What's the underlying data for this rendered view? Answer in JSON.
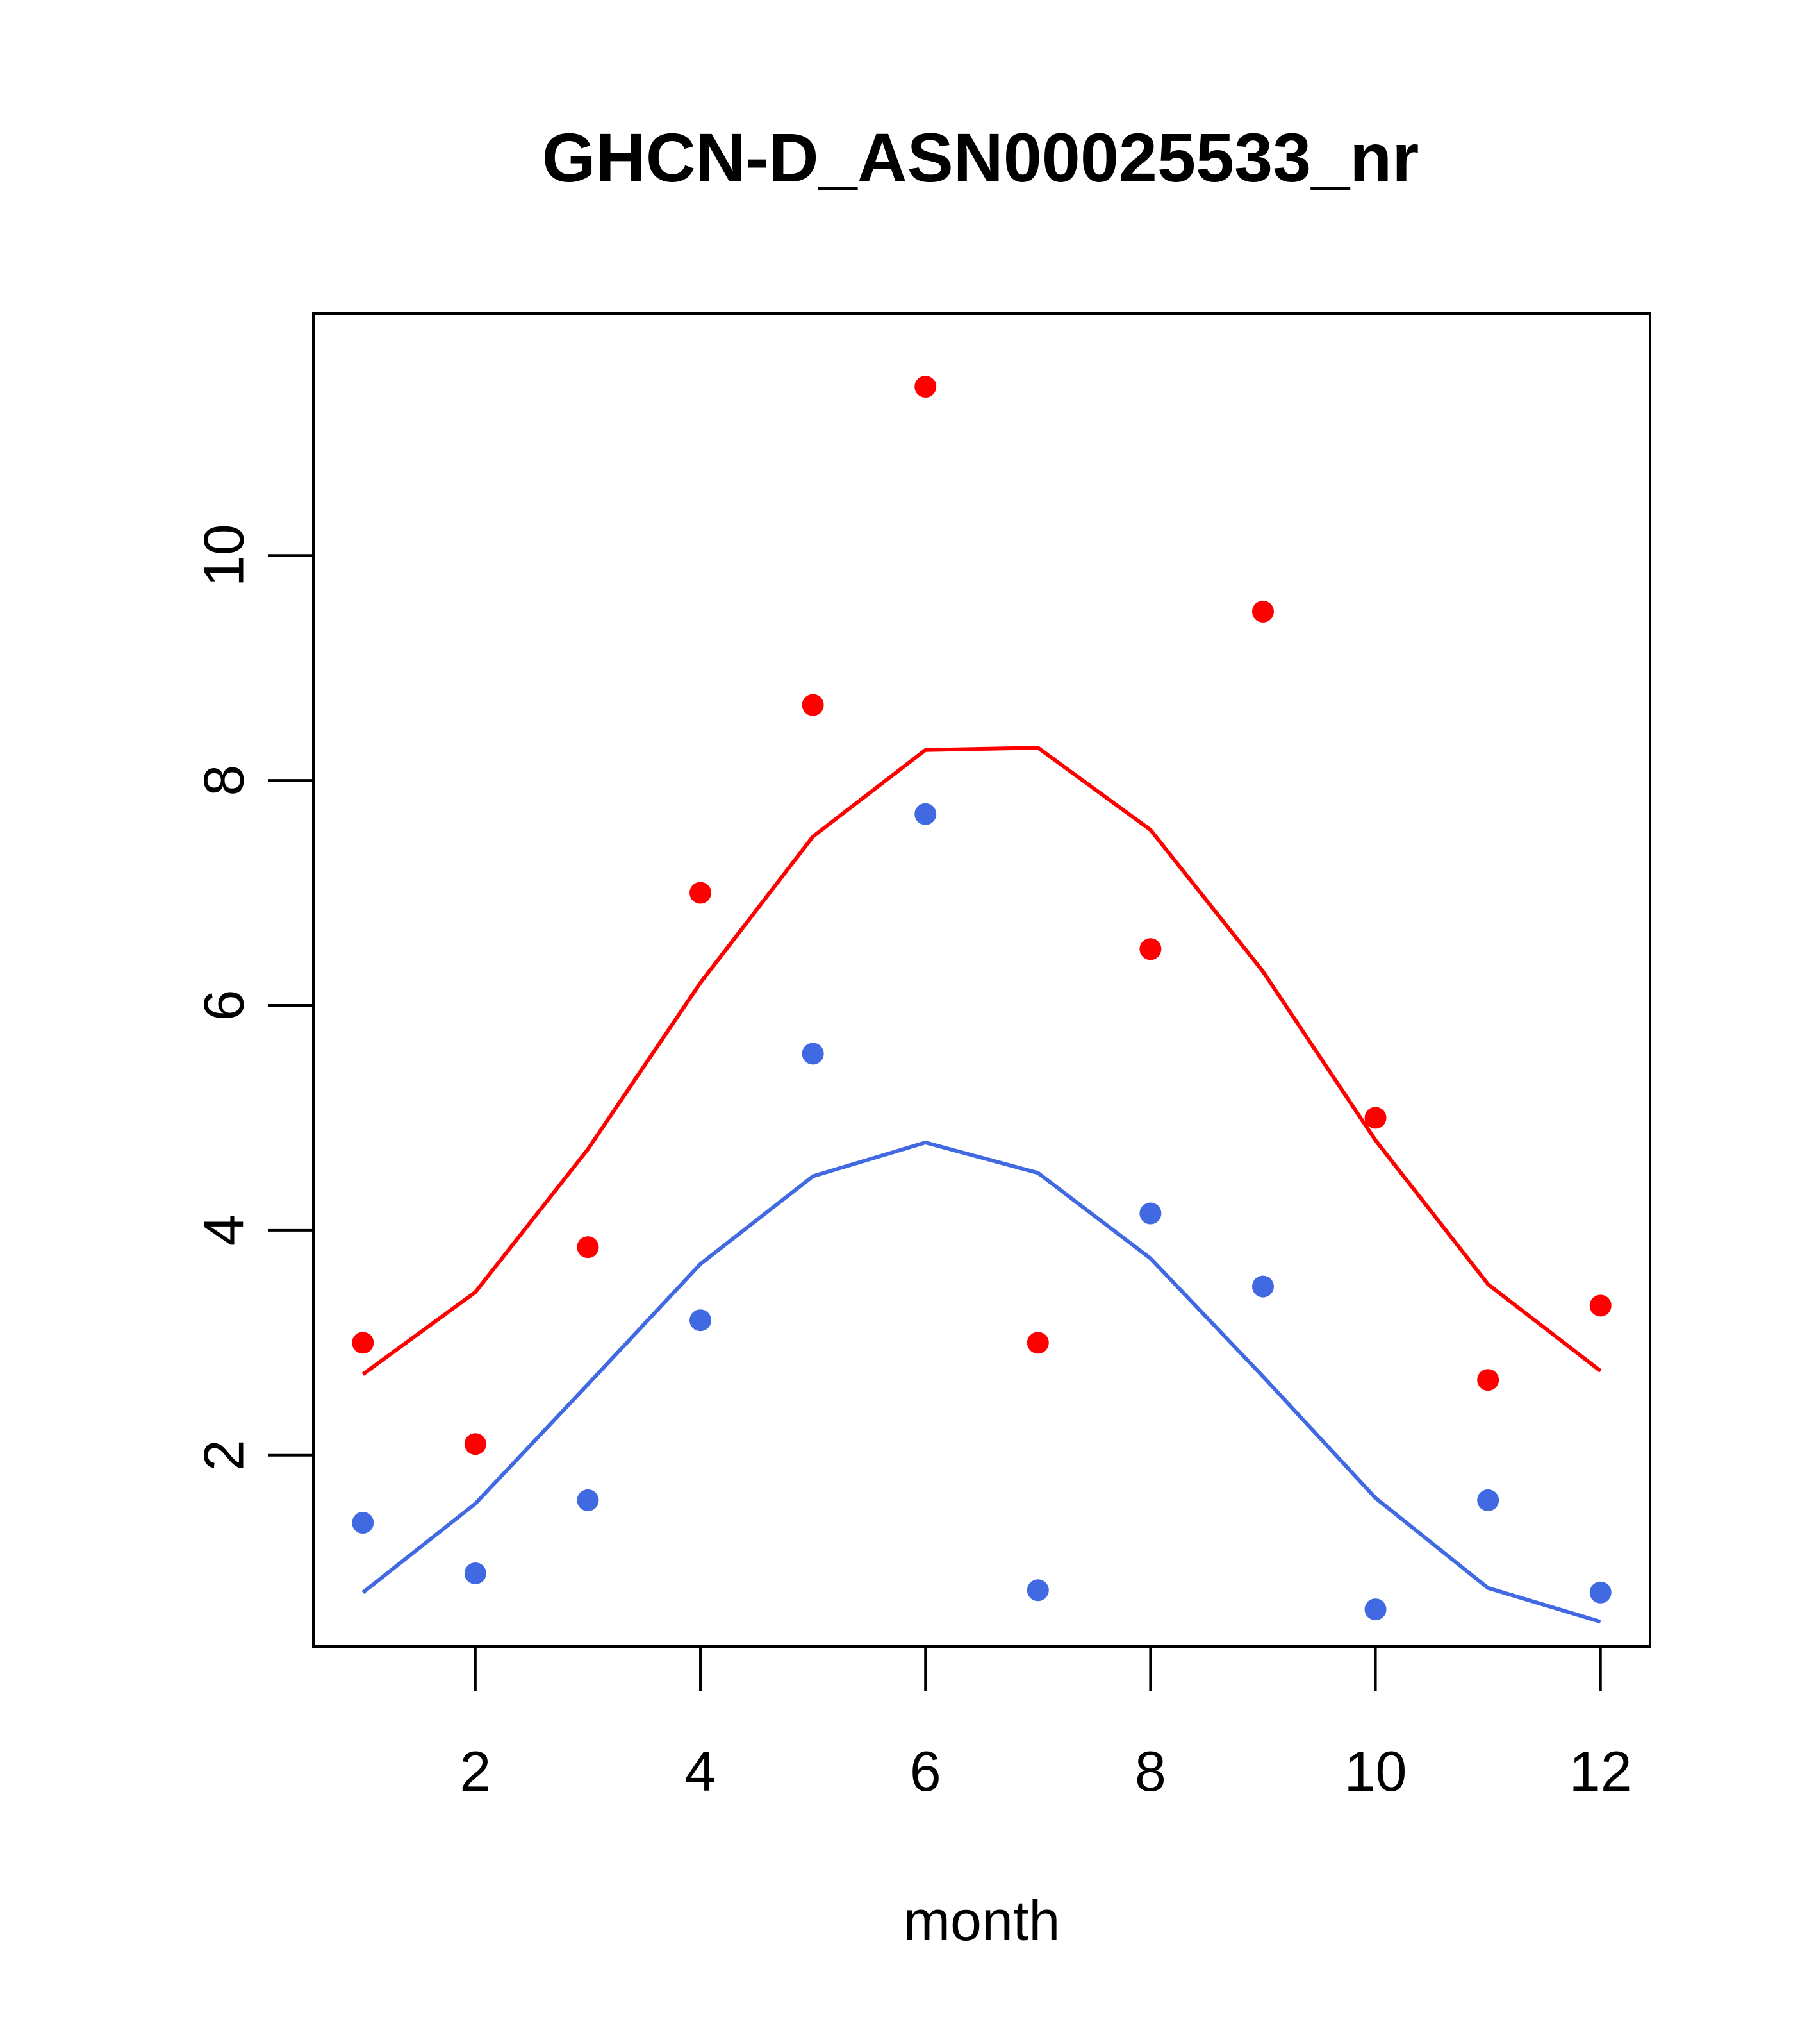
{
  "chart_data": {
    "type": "line",
    "title": "GHCN-D_ASN00025533_nr",
    "xlabel": "month",
    "ylabel": "",
    "xlim": [
      0.56,
      12.44
    ],
    "ylim": [
      0.3,
      12.15
    ],
    "x_ticks": [
      2,
      4,
      6,
      8,
      10,
      12
    ],
    "y_ticks": [
      2,
      4,
      6,
      8,
      10
    ],
    "grid": false,
    "colors": {
      "red": "#ff0000",
      "blue": "#4169e1"
    },
    "series": [
      {
        "color": "red",
        "mode": "points",
        "x": [
          1,
          2,
          3,
          4,
          5,
          6,
          7,
          8,
          9,
          10,
          11,
          12
        ],
        "y": [
          3.0,
          2.1,
          3.85,
          7.0,
          8.67,
          11.5,
          3.0,
          6.5,
          9.5,
          5.0,
          2.67,
          3.33
        ]
      },
      {
        "color": "red",
        "mode": "line",
        "x": [
          1,
          2,
          3,
          4,
          5,
          6,
          7,
          8,
          9,
          10,
          11,
          12
        ],
        "y": [
          2.72,
          3.45,
          4.72,
          6.2,
          7.5,
          8.27,
          8.29,
          7.56,
          6.3,
          4.8,
          3.52,
          2.75
        ]
      },
      {
        "color": "blue",
        "mode": "points",
        "x": [
          1,
          2,
          3,
          4,
          5,
          6,
          7,
          8,
          9,
          10,
          11,
          12
        ],
        "y": [
          1.4,
          0.95,
          1.6,
          3.2,
          5.57,
          7.7,
          0.8,
          4.15,
          3.5,
          0.63,
          1.6,
          0.78
        ]
      },
      {
        "color": "blue",
        "mode": "line",
        "x": [
          1,
          2,
          3,
          4,
          5,
          6,
          7,
          8,
          9,
          10,
          11,
          12
        ],
        "y": [
          0.78,
          1.57,
          2.63,
          3.7,
          4.48,
          4.78,
          4.51,
          3.75,
          2.7,
          1.62,
          0.82,
          0.52
        ]
      }
    ]
  }
}
